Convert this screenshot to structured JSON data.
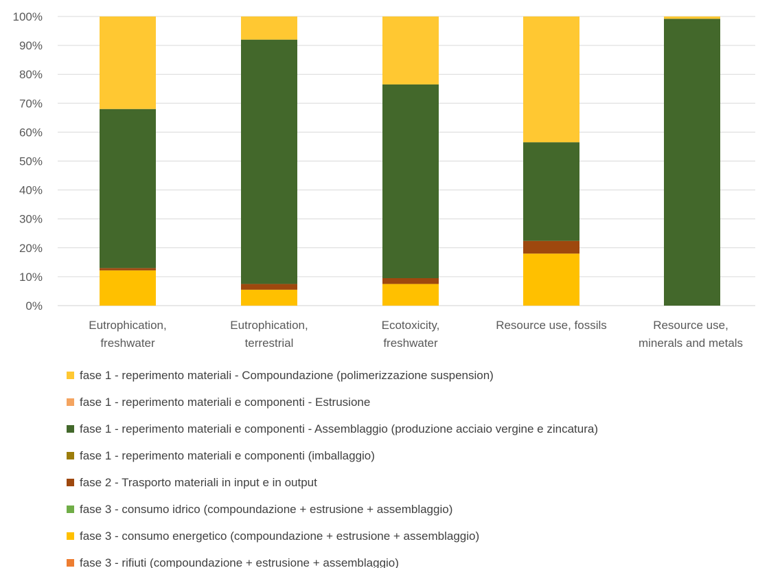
{
  "chart_data": {
    "type": "bar",
    "stacked": true,
    "normalized": true,
    "ylim": [
      0,
      100
    ],
    "yticks": [
      "0%",
      "10%",
      "20%",
      "30%",
      "40%",
      "50%",
      "60%",
      "70%",
      "80%",
      "90%",
      "100%"
    ],
    "grid": true,
    "legend_position": "bottom",
    "categories": [
      [
        "Eutrophication,",
        "freshwater"
      ],
      [
        "Eutrophication,",
        "terrestrial"
      ],
      [
        "Ecotoxicity,",
        "freshwater"
      ],
      [
        "Resource use, fossils"
      ],
      [
        "Resource use,",
        "minerals and metals"
      ]
    ],
    "stack_order_bottom_to_top": [
      6,
      7,
      4,
      5,
      2,
      3,
      1,
      0
    ],
    "series": [
      {
        "name": "fase 1 - reperimento materiali - Compoundazione (polimerizzazione suspension)",
        "color": "#FFC832",
        "values": [
          32,
          8,
          23.5,
          43.5,
          0.8
        ]
      },
      {
        "name": "fase 1 - reperimento materiali e componenti - Estrusione",
        "color": "#F4A460",
        "values": [
          0,
          0,
          0,
          0,
          0
        ]
      },
      {
        "name": "fase 1 - reperimento materiali e componenti - Assemblaggio (produzione acciaio vergine e zincatura)",
        "color": "#43682B",
        "values": [
          55,
          84.5,
          67,
          34.1,
          99.2
        ]
      },
      {
        "name": "fase 1 - reperimento materiali e componenti (imballaggio)",
        "color": "#9C7D0B",
        "values": [
          0,
          0,
          0,
          0,
          0
        ]
      },
      {
        "name": "fase 2 - Trasporto materiali in input e in output",
        "color": "#9E480E",
        "values": [
          0.8,
          2,
          2,
          4.4,
          0
        ]
      },
      {
        "name": "fase 3 - consumo idrico (compoundazione + estrusione + assemblaggio)",
        "color": "#70AD47",
        "values": [
          0,
          0,
          0,
          0,
          0
        ]
      },
      {
        "name": "fase 3 - consumo energetico (compoundazione + estrusione + assemblaggio)",
        "color": "#FFC000",
        "values": [
          12.2,
          5.5,
          7.5,
          18,
          0
        ]
      },
      {
        "name": "fase 3 - rifiuti (compoundazione + estrusione + assemblaggio)",
        "color": "#ED7D31",
        "values": [
          0,
          0,
          0,
          0,
          0
        ]
      }
    ]
  }
}
